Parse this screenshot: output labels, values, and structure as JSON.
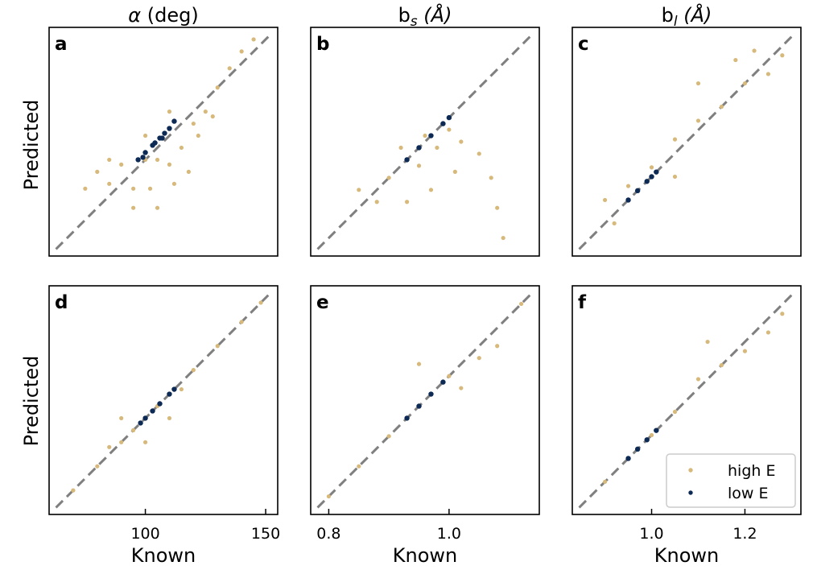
{
  "colors": {
    "high_e": "#d7b97b",
    "low_e": "#0d2a55",
    "identity": "#7f7f7f"
  },
  "figure": {
    "column_titles": [
      {
        "lead": "α",
        "rest": " (deg)"
      },
      {
        "lead": "b",
        "sub": "s",
        "rest": " (Å)"
      },
      {
        "lead": "b",
        "sub": "l",
        "rest": " (Å)"
      }
    ],
    "ylabel": "Predicted",
    "xlabel": "Known",
    "legend": [
      "high E",
      "low E"
    ]
  },
  "chart_data": [
    {
      "panel": "a",
      "type": "scatter",
      "column": 0,
      "row": 0,
      "xlim": [
        60,
        155
      ],
      "ylim": [
        60,
        155
      ],
      "ticks_shown": false,
      "series": [
        {
          "name": "high E",
          "points": [
            [
              100,
              100
            ],
            [
              90,
              98
            ],
            [
              95,
              88
            ],
            [
              85,
              100
            ],
            [
              105,
              100
            ],
            [
              110,
              98
            ],
            [
              115,
              105
            ],
            [
              120,
              115
            ],
            [
              125,
              120
            ],
            [
              130,
              130
            ],
            [
              135,
              138
            ],
            [
              140,
              145
            ],
            [
              145,
              150
            ],
            [
              110,
              120
            ],
            [
              102,
              88
            ],
            [
              95,
              80
            ],
            [
              105,
              80
            ],
            [
              85,
              90
            ],
            [
              75,
              88
            ],
            [
              80,
              95
            ],
            [
              112,
              90
            ],
            [
              118,
              95
            ],
            [
              122,
              110
            ],
            [
              128,
              118
            ],
            [
              100,
              110
            ]
          ]
        },
        {
          "name": "low E",
          "points": [
            [
              97,
              100
            ],
            [
              100,
              103
            ],
            [
              103,
              106
            ],
            [
              106,
              109
            ],
            [
              108,
              111
            ],
            [
              110,
              113
            ],
            [
              112,
              116
            ],
            [
              99,
              101
            ],
            [
              104,
              107
            ],
            [
              107,
              109
            ]
          ]
        }
      ]
    },
    {
      "panel": "b",
      "type": "scatter",
      "column": 1,
      "row": 0,
      "xlim": [
        0.77,
        1.15
      ],
      "ylim": [
        0.77,
        1.15
      ],
      "ticks_shown": false,
      "series": [
        {
          "name": "high E",
          "points": [
            [
              0.85,
              0.88
            ],
            [
              0.9,
              0.9
            ],
            [
              0.95,
              0.92
            ],
            [
              0.98,
              0.95
            ],
            [
              1.0,
              0.98
            ],
            [
              1.02,
              0.96
            ],
            [
              1.05,
              0.94
            ],
            [
              1.07,
              0.9
            ],
            [
              1.08,
              0.85
            ],
            [
              1.09,
              0.8
            ],
            [
              0.88,
              0.86
            ],
            [
              0.93,
              0.86
            ],
            [
              0.97,
              0.88
            ],
            [
              1.01,
              0.91
            ],
            [
              0.92,
              0.95
            ],
            [
              0.96,
              0.97
            ]
          ]
        },
        {
          "name": "low E",
          "points": [
            [
              0.93,
              0.93
            ],
            [
              0.95,
              0.95
            ],
            [
              0.97,
              0.97
            ],
            [
              0.99,
              0.99
            ],
            [
              1.0,
              1.0
            ]
          ]
        }
      ]
    },
    {
      "panel": "c",
      "type": "scatter",
      "column": 2,
      "row": 0,
      "xlim": [
        0.83,
        1.32
      ],
      "ylim": [
        0.83,
        1.32
      ],
      "ticks_shown": false,
      "series": [
        {
          "name": "high E",
          "points": [
            [
              0.9,
              0.95
            ],
            [
              0.95,
              0.98
            ],
            [
              1.0,
              1.02
            ],
            [
              1.05,
              1.08
            ],
            [
              1.1,
              1.12
            ],
            [
              1.15,
              1.15
            ],
            [
              1.2,
              1.2
            ],
            [
              1.25,
              1.22
            ],
            [
              1.28,
              1.26
            ],
            [
              1.1,
              1.2
            ],
            [
              1.05,
              1.0
            ],
            [
              0.92,
              0.9
            ],
            [
              1.18,
              1.25
            ],
            [
              1.22,
              1.27
            ]
          ]
        },
        {
          "name": "low E",
          "points": [
            [
              0.95,
              0.95
            ],
            [
              0.97,
              0.97
            ],
            [
              0.99,
              0.99
            ],
            [
              1.0,
              1.0
            ],
            [
              1.01,
              1.01
            ]
          ]
        }
      ]
    },
    {
      "panel": "d",
      "type": "scatter",
      "column": 0,
      "row": 1,
      "xlim": [
        60,
        155
      ],
      "ylim": [
        60,
        155
      ],
      "ticks_shown": true,
      "x_ticks": [
        100,
        150
      ],
      "series": [
        {
          "name": "high E",
          "points": [
            [
              70,
              70
            ],
            [
              80,
              80
            ],
            [
              90,
              90
            ],
            [
              95,
              95
            ],
            [
              100,
              100
            ],
            [
              105,
              105
            ],
            [
              110,
              110
            ],
            [
              120,
              120
            ],
            [
              130,
              130
            ],
            [
              140,
              140
            ],
            [
              148,
              148
            ],
            [
              90,
              100
            ],
            [
              110,
              100
            ],
            [
              100,
              90
            ],
            [
              85,
              88
            ],
            [
              115,
              112
            ]
          ]
        },
        {
          "name": "low E",
          "points": [
            [
              98,
              98
            ],
            [
              100,
              100
            ],
            [
              103,
              103
            ],
            [
              106,
              106
            ],
            [
              110,
              110
            ],
            [
              112,
              112
            ]
          ]
        }
      ]
    },
    {
      "panel": "e",
      "type": "scatter",
      "column": 1,
      "row": 1,
      "xlim": [
        0.77,
        1.15
      ],
      "ylim": [
        0.77,
        1.15
      ],
      "ticks_shown": true,
      "x_ticks": [
        0.8,
        1.0
      ],
      "series": [
        {
          "name": "high E",
          "points": [
            [
              0.8,
              0.8
            ],
            [
              0.85,
              0.85
            ],
            [
              0.9,
              0.9
            ],
            [
              0.95,
              0.95
            ],
            [
              1.0,
              1.0
            ],
            [
              1.05,
              1.03
            ],
            [
              1.08,
              1.05
            ],
            [
              1.12,
              1.12
            ],
            [
              0.95,
              1.02
            ],
            [
              1.02,
              0.98
            ]
          ]
        },
        {
          "name": "low E",
          "points": [
            [
              0.93,
              0.93
            ],
            [
              0.95,
              0.95
            ],
            [
              0.97,
              0.97
            ],
            [
              0.99,
              0.99
            ]
          ]
        }
      ]
    },
    {
      "panel": "f",
      "type": "scatter",
      "column": 2,
      "row": 1,
      "xlim": [
        0.83,
        1.32
      ],
      "ylim": [
        0.83,
        1.32
      ],
      "ticks_shown": true,
      "x_ticks": [
        1.0,
        1.2
      ],
      "series": [
        {
          "name": "high E",
          "points": [
            [
              0.9,
              0.9
            ],
            [
              0.95,
              0.95
            ],
            [
              1.0,
              1.0
            ],
            [
              1.05,
              1.05
            ],
            [
              1.1,
              1.12
            ],
            [
              1.15,
              1.15
            ],
            [
              1.2,
              1.18
            ],
            [
              1.25,
              1.22
            ],
            [
              1.28,
              1.26
            ],
            [
              1.12,
              1.2
            ]
          ]
        },
        {
          "name": "low E",
          "points": [
            [
              0.95,
              0.95
            ],
            [
              0.97,
              0.97
            ],
            [
              0.99,
              0.99
            ],
            [
              1.01,
              1.01
            ]
          ]
        }
      ]
    }
  ]
}
